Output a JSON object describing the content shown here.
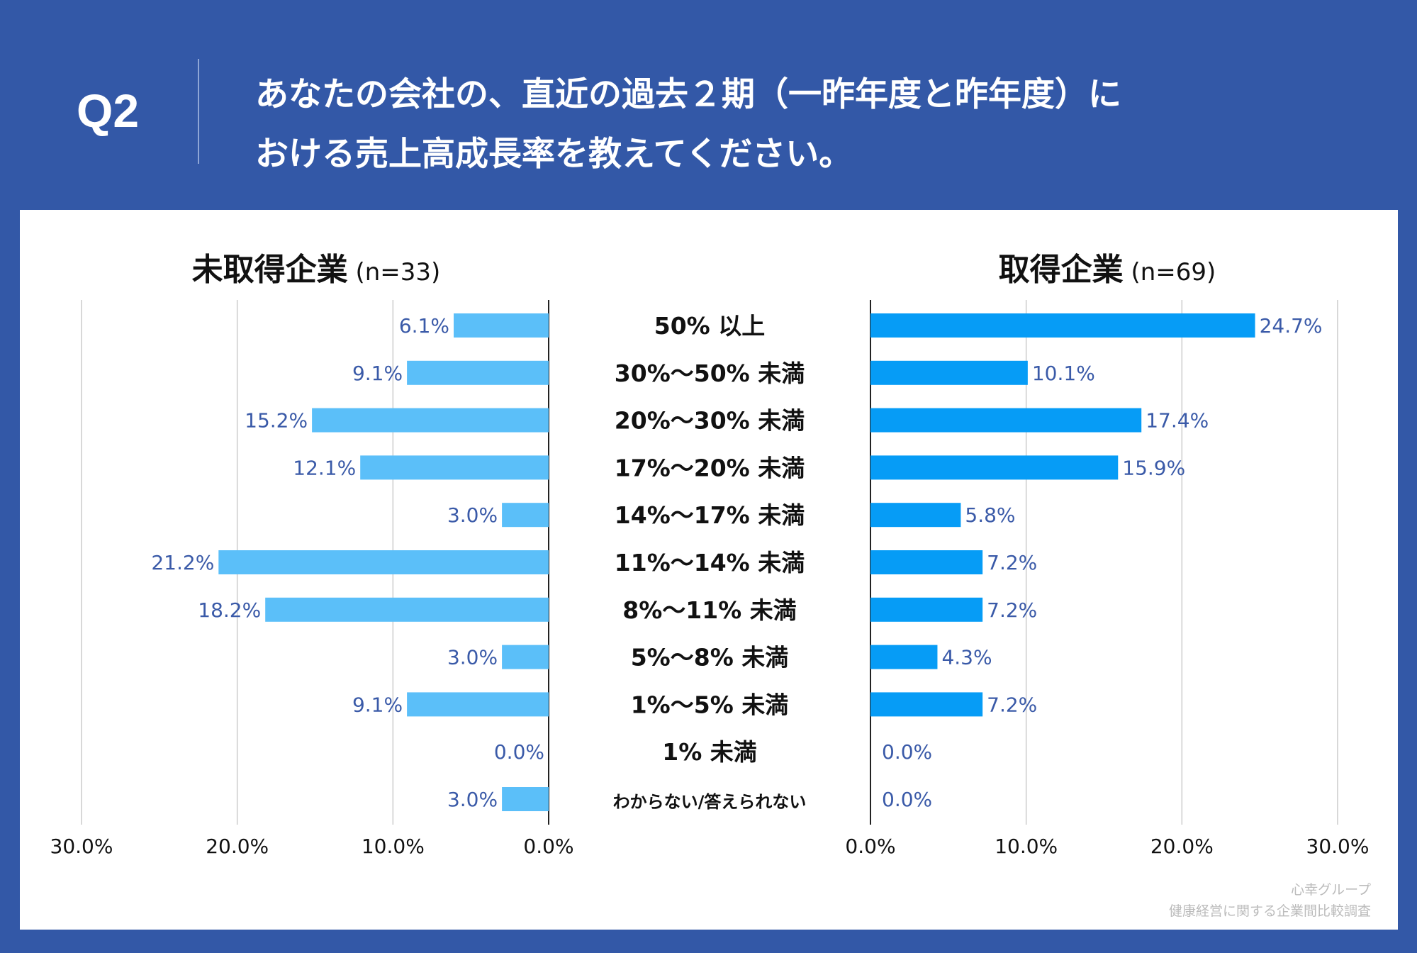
{
  "header": {
    "q_label": "Q2",
    "title_line1": "あなたの会社の、直近の過去２期（一昨年度と昨年度）に",
    "title_line2": "おける売上高成長率を教えてください。"
  },
  "colors": {
    "background": "#3358a7",
    "left_bar": "#5bbff9",
    "right_bar": "#069cf6",
    "value_label": "#3a5aa8"
  },
  "footer": {
    "line1": "心幸グループ",
    "line2": "健康経営に関する企業間比較調査"
  },
  "chart_data": {
    "type": "bar",
    "orientation": "horizontal-butterfly",
    "categories": [
      "50% 以上",
      "30%～50% 未満",
      "20%～30% 未満",
      "17%～20% 未満",
      "14%～17% 未満",
      "11%～14% 未満",
      "8%～11% 未満",
      "5%～8% 未満",
      "1%～5% 未満",
      "1% 未満",
      "わからない/答えられない"
    ],
    "series": [
      {
        "name": "未取得企業",
        "n_label": "(n=33)",
        "values": [
          6.1,
          9.1,
          15.2,
          12.1,
          3.0,
          21.2,
          18.2,
          3.0,
          9.1,
          0.0,
          3.0
        ],
        "labels": [
          "6.1%",
          "9.1%",
          "15.2%",
          "12.1%",
          "3.0%",
          "21.2%",
          "18.2%",
          "3.0%",
          "9.1%",
          "0.0%",
          "3.0%"
        ]
      },
      {
        "name": "取得企業",
        "n_label": "(n=69)",
        "values": [
          24.7,
          10.1,
          17.4,
          15.9,
          5.8,
          7.2,
          7.2,
          4.3,
          7.2,
          0.0,
          0.0
        ],
        "labels": [
          "24.7%",
          "10.1%",
          "17.4%",
          "15.9%",
          "5.8%",
          "7.2%",
          "7.2%",
          "4.3%",
          "7.2%",
          "0.0%",
          "0.0%"
        ]
      }
    ],
    "xlim": [
      0,
      30
    ],
    "left_ticks": [
      "30.0%",
      "20.0%",
      "10.0%",
      "0.0%"
    ],
    "right_ticks": [
      "0.0%",
      "10.0%",
      "20.0%",
      "30.0%"
    ],
    "grid": true
  }
}
